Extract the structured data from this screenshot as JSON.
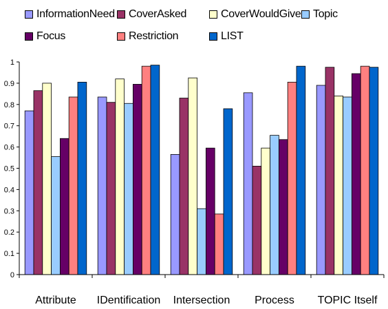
{
  "chart_data": {
    "type": "bar",
    "categories": [
      "Attribute",
      "IDentification",
      "Intersection",
      "Process",
      "TOPIC Itself"
    ],
    "series": [
      {
        "name": "InformationNeed",
        "color": "#9999ff",
        "values": [
          0.77,
          0.835,
          0.565,
          0.855,
          0.89
        ]
      },
      {
        "name": "CoverAsked",
        "color": "#993366",
        "values": [
          0.865,
          0.81,
          0.83,
          0.51,
          0.975
        ]
      },
      {
        "name": "CoverWouldGive",
        "color": "#ffffcc",
        "values": [
          0.9,
          0.92,
          0.925,
          0.595,
          0.84
        ]
      },
      {
        "name": "Topic",
        "color": "#99ccff",
        "values": [
          0.555,
          0.805,
          0.31,
          0.655,
          0.835
        ]
      },
      {
        "name": "Focus",
        "color": "#660066",
        "values": [
          0.64,
          0.895,
          0.595,
          0.635,
          0.945
        ]
      },
      {
        "name": "Restriction",
        "color": "#ff8080",
        "values": [
          0.835,
          0.98,
          0.285,
          0.905,
          0.98
        ]
      },
      {
        "name": "LIST",
        "color": "#0066cc",
        "values": [
          0.905,
          0.985,
          0.78,
          0.98,
          0.975
        ]
      }
    ],
    "ylim": [
      0,
      1
    ],
    "yticks": [
      "0",
      "0.1",
      "0.2",
      "0.3",
      "0.4",
      "0.5",
      "0.6",
      "0.7",
      "0.8",
      "0.9",
      "1"
    ],
    "grid": false,
    "legend_position": "top"
  }
}
